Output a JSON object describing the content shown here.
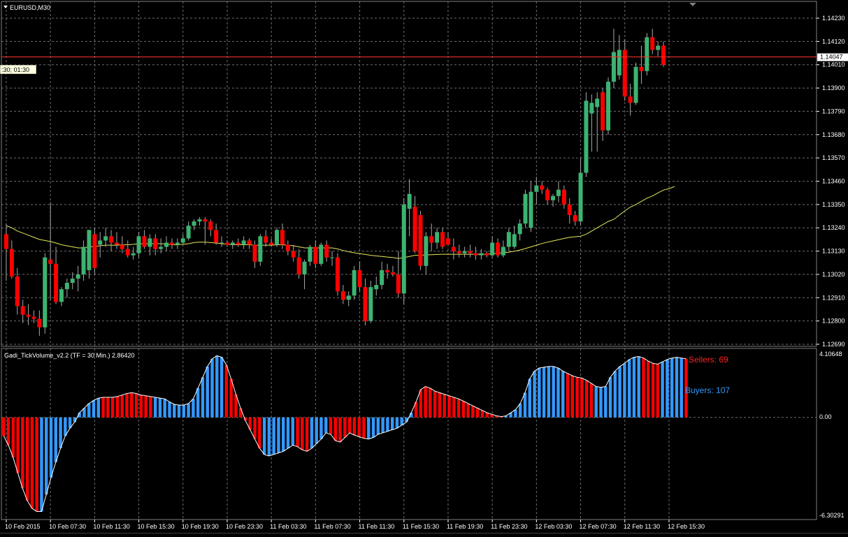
{
  "window": {
    "symbol_label": "EURUSD,M30",
    "cursor_readout": ":30; 01:30"
  },
  "main_pane": {
    "price_axis_labels": [
      "1.14230",
      "1.14120",
      "1.14010",
      "1.13900",
      "1.13790",
      "1.13680",
      "1.13570",
      "1.13460",
      "1.13350",
      "1.13240",
      "1.13130",
      "1.13020",
      "1.12910",
      "1.12800",
      "1.12690"
    ],
    "current_price_label": "1.14047",
    "price_range": [
      1.1269,
      1.1423
    ],
    "current_price": 1.14047
  },
  "indicator_pane": {
    "title": "Gadi_TickVolume_v2.2 (TF = 30 Min.) 2.86420",
    "max_label": "4.10648",
    "zero_label": "0.00",
    "min_label": "-6.30291",
    "value_range": [
      -6.30291,
      4.10648
    ],
    "sellers_label": "Sellers: 69",
    "buyers_label": "Buyers: 107"
  },
  "time_axis_labels": [
    "10 Feb 2015",
    "10 Feb 07:30",
    "10 Feb 11:30",
    "10 Feb 15:30",
    "10 Feb 19:30",
    "10 Feb 23:30",
    "11 Feb 03:30",
    "11 Feb 07:30",
    "11 Feb 11:30",
    "11 Feb 15:30",
    "11 Feb 19:30",
    "11 Feb 23:30",
    "12 Feb 03:30",
    "12 Feb 07:30",
    "12 Feb 11:30",
    "12 Feb 15:30"
  ],
  "colors": {
    "background": "#000000",
    "grid": "#6e6e6e",
    "bull_candle": "#3cb371",
    "bear_candle": "#ff0000",
    "wick": "#a9a9a9",
    "moving_average": "#e8e85a",
    "price_line": "#ff3030",
    "buyers_hist": "#3399ff",
    "sellers_hist": "#ff0000",
    "hist_outline": "#ffffff",
    "text": "#ffffff"
  },
  "chart_data": {
    "type": "candlestick",
    "x_labels_every_bars": 8,
    "candles": [
      {
        "o": 1.1321,
        "h": 1.1326,
        "l": 1.1299,
        "c": 1.1314
      },
      {
        "o": 1.1314,
        "h": 1.1318,
        "l": 1.13,
        "c": 1.1301
      },
      {
        "o": 1.1301,
        "h": 1.1305,
        "l": 1.1283,
        "c": 1.1287
      },
      {
        "o": 1.1287,
        "h": 1.129,
        "l": 1.1279,
        "c": 1.1283
      },
      {
        "o": 1.1283,
        "h": 1.1288,
        "l": 1.1278,
        "c": 1.1282
      },
      {
        "o": 1.1282,
        "h": 1.1285,
        "l": 1.1279,
        "c": 1.1281
      },
      {
        "o": 1.1281,
        "h": 1.1285,
        "l": 1.1273,
        "c": 1.1277
      },
      {
        "o": 1.1277,
        "h": 1.1312,
        "l": 1.1274,
        "c": 1.131
      },
      {
        "o": 1.1309,
        "h": 1.1336,
        "l": 1.129,
        "c": 1.1307
      },
      {
        "o": 1.1307,
        "h": 1.1315,
        "l": 1.1288,
        "c": 1.1289
      },
      {
        "o": 1.1289,
        "h": 1.1296,
        "l": 1.1287,
        "c": 1.1295
      },
      {
        "o": 1.1295,
        "h": 1.13,
        "l": 1.1291,
        "c": 1.1298
      },
      {
        "o": 1.1298,
        "h": 1.1303,
        "l": 1.1295,
        "c": 1.13
      },
      {
        "o": 1.13,
        "h": 1.1306,
        "l": 1.1294,
        "c": 1.1302
      },
      {
        "o": 1.1302,
        "h": 1.1318,
        "l": 1.1299,
        "c": 1.1315
      },
      {
        "o": 1.1304,
        "h": 1.1322,
        "l": 1.13,
        "c": 1.1323
      },
      {
        "o": 1.1321,
        "h": 1.1324,
        "l": 1.1302,
        "c": 1.1305
      },
      {
        "o": 1.1316,
        "h": 1.1322,
        "l": 1.131,
        "c": 1.1318
      },
      {
        "o": 1.1318,
        "h": 1.1324,
        "l": 1.1315,
        "c": 1.132
      },
      {
        "o": 1.132,
        "h": 1.1323,
        "l": 1.1313,
        "c": 1.1317
      },
      {
        "o": 1.1317,
        "h": 1.1322,
        "l": 1.1314,
        "c": 1.1316
      },
      {
        "o": 1.1316,
        "h": 1.132,
        "l": 1.1312,
        "c": 1.1314
      },
      {
        "o": 1.1314,
        "h": 1.1318,
        "l": 1.131,
        "c": 1.1311
      },
      {
        "o": 1.1311,
        "h": 1.1315,
        "l": 1.1309,
        "c": 1.1312
      },
      {
        "o": 1.1312,
        "h": 1.1322,
        "l": 1.131,
        "c": 1.132
      },
      {
        "o": 1.132,
        "h": 1.1323,
        "l": 1.1314,
        "c": 1.1315
      },
      {
        "o": 1.1315,
        "h": 1.1321,
        "l": 1.1311,
        "c": 1.1319
      },
      {
        "o": 1.1319,
        "h": 1.1321,
        "l": 1.1311,
        "c": 1.1314
      },
      {
        "o": 1.1314,
        "h": 1.1319,
        "l": 1.1312,
        "c": 1.1315
      },
      {
        "o": 1.1315,
        "h": 1.132,
        "l": 1.1313,
        "c": 1.1317
      },
      {
        "o": 1.1317,
        "h": 1.1319,
        "l": 1.1314,
        "c": 1.1316
      },
      {
        "o": 1.1316,
        "h": 1.1319,
        "l": 1.1314,
        "c": 1.1317
      },
      {
        "o": 1.1317,
        "h": 1.1321,
        "l": 1.1316,
        "c": 1.1319
      },
      {
        "o": 1.1319,
        "h": 1.1327,
        "l": 1.1318,
        "c": 1.1325
      },
      {
        "o": 1.1325,
        "h": 1.1328,
        "l": 1.1323,
        "c": 1.1327
      },
      {
        "o": 1.1327,
        "h": 1.1329,
        "l": 1.1325,
        "c": 1.1328
      },
      {
        "o": 1.1328,
        "h": 1.1329,
        "l": 1.1316,
        "c": 1.1327
      },
      {
        "o": 1.1327,
        "h": 1.1328,
        "l": 1.132,
        "c": 1.1323
      },
      {
        "o": 1.1323,
        "h": 1.1326,
        "l": 1.1316,
        "c": 1.1317
      },
      {
        "o": 1.1317,
        "h": 1.132,
        "l": 1.1315,
        "c": 1.1317
      },
      {
        "o": 1.1317,
        "h": 1.1318,
        "l": 1.1315,
        "c": 1.1316
      },
      {
        "o": 1.1316,
        "h": 1.1318,
        "l": 1.1314,
        "c": 1.1317
      },
      {
        "o": 1.1317,
        "h": 1.1319,
        "l": 1.1315,
        "c": 1.1316
      },
      {
        "o": 1.1316,
        "h": 1.132,
        "l": 1.1314,
        "c": 1.1318
      },
      {
        "o": 1.1318,
        "h": 1.1319,
        "l": 1.1314,
        "c": 1.1316
      },
      {
        "o": 1.1316,
        "h": 1.1318,
        "l": 1.1305,
        "c": 1.1308
      },
      {
        "o": 1.1308,
        "h": 1.1321,
        "l": 1.1306,
        "c": 1.132
      },
      {
        "o": 1.132,
        "h": 1.1323,
        "l": 1.1315,
        "c": 1.1317
      },
      {
        "o": 1.1317,
        "h": 1.1319,
        "l": 1.1315,
        "c": 1.1316
      },
      {
        "o": 1.1316,
        "h": 1.1324,
        "l": 1.1315,
        "c": 1.1323
      },
      {
        "o": 1.1323,
        "h": 1.1326,
        "l": 1.1314,
        "c": 1.1316
      },
      {
        "o": 1.1316,
        "h": 1.1318,
        "l": 1.1311,
        "c": 1.1313
      },
      {
        "o": 1.1313,
        "h": 1.1316,
        "l": 1.1308,
        "c": 1.131
      },
      {
        "o": 1.131,
        "h": 1.1314,
        "l": 1.13,
        "c": 1.1302
      },
      {
        "o": 1.1302,
        "h": 1.1309,
        "l": 1.1295,
        "c": 1.1308
      },
      {
        "o": 1.1308,
        "h": 1.1316,
        "l": 1.1306,
        "c": 1.1315
      },
      {
        "o": 1.1315,
        "h": 1.1318,
        "l": 1.1305,
        "c": 1.1307
      },
      {
        "o": 1.1307,
        "h": 1.1317,
        "l": 1.1306,
        "c": 1.1316
      },
      {
        "o": 1.1316,
        "h": 1.1318,
        "l": 1.1308,
        "c": 1.131
      },
      {
        "o": 1.131,
        "h": 1.1313,
        "l": 1.1306,
        "c": 1.131
      },
      {
        "o": 1.131,
        "h": 1.1312,
        "l": 1.1292,
        "c": 1.1294
      },
      {
        "o": 1.1294,
        "h": 1.1297,
        "l": 1.1288,
        "c": 1.129
      },
      {
        "o": 1.129,
        "h": 1.1294,
        "l": 1.1287,
        "c": 1.1292
      },
      {
        "o": 1.1292,
        "h": 1.1306,
        "l": 1.129,
        "c": 1.1304
      },
      {
        "o": 1.1304,
        "h": 1.1308,
        "l": 1.1294,
        "c": 1.1296
      },
      {
        "o": 1.1296,
        "h": 1.13,
        "l": 1.1278,
        "c": 1.128
      },
      {
        "o": 1.128,
        "h": 1.1299,
        "l": 1.1279,
        "c": 1.1296
      },
      {
        "o": 1.1295,
        "h": 1.1301,
        "l": 1.1292,
        "c": 1.1297
      },
      {
        "o": 1.1297,
        "h": 1.1308,
        "l": 1.1295,
        "c": 1.1304
      },
      {
        "o": 1.1304,
        "h": 1.1307,
        "l": 1.13,
        "c": 1.1303
      },
      {
        "o": 1.1303,
        "h": 1.1306,
        "l": 1.1301,
        "c": 1.1302
      },
      {
        "o": 1.1302,
        "h": 1.1313,
        "l": 1.1291,
        "c": 1.1293
      },
      {
        "o": 1.1293,
        "h": 1.1338,
        "l": 1.1288,
        "c": 1.1335
      },
      {
        "o": 1.1333,
        "h": 1.1347,
        "l": 1.132,
        "c": 1.134
      },
      {
        "o": 1.1334,
        "h": 1.1339,
        "l": 1.1312,
        "c": 1.1313
      },
      {
        "o": 1.133,
        "h": 1.1332,
        "l": 1.1304,
        "c": 1.1306
      },
      {
        "o": 1.1306,
        "h": 1.1322,
        "l": 1.1302,
        "c": 1.132
      },
      {
        "o": 1.132,
        "h": 1.1326,
        "l": 1.1313,
        "c": 1.1317
      },
      {
        "o": 1.1317,
        "h": 1.1324,
        "l": 1.1314,
        "c": 1.1322
      },
      {
        "o": 1.1322,
        "h": 1.1324,
        "l": 1.1314,
        "c": 1.1315
      },
      {
        "o": 1.1319,
        "h": 1.1322,
        "l": 1.1316,
        "c": 1.1316
      },
      {
        "o": 1.1315,
        "h": 1.1319,
        "l": 1.1309,
        "c": 1.1313
      },
      {
        "o": 1.1313,
        "h": 1.1316,
        "l": 1.131,
        "c": 1.1312
      },
      {
        "o": 1.1312,
        "h": 1.1315,
        "l": 1.131,
        "c": 1.1313
      },
      {
        "o": 1.1313,
        "h": 1.1316,
        "l": 1.131,
        "c": 1.1312
      },
      {
        "o": 1.1312,
        "h": 1.1315,
        "l": 1.1309,
        "c": 1.1311
      },
      {
        "o": 1.1311,
        "h": 1.1314,
        "l": 1.1309,
        "c": 1.1312
      },
      {
        "o": 1.1312,
        "h": 1.1313,
        "l": 1.131,
        "c": 1.1311
      },
      {
        "o": 1.1311,
        "h": 1.132,
        "l": 1.131,
        "c": 1.1317
      },
      {
        "o": 1.1317,
        "h": 1.1319,
        "l": 1.131,
        "c": 1.1311
      },
      {
        "o": 1.1311,
        "h": 1.1318,
        "l": 1.131,
        "c": 1.1315
      },
      {
        "o": 1.1315,
        "h": 1.1324,
        "l": 1.1313,
        "c": 1.1322
      },
      {
        "o": 1.1315,
        "h": 1.1325,
        "l": 1.1314,
        "c": 1.1321
      },
      {
        "o": 1.1321,
        "h": 1.1328,
        "l": 1.1318,
        "c": 1.1326
      },
      {
        "o": 1.1326,
        "h": 1.1342,
        "l": 1.1324,
        "c": 1.134
      },
      {
        "o": 1.1324,
        "h": 1.1346,
        "l": 1.1322,
        "c": 1.1341
      },
      {
        "o": 1.1341,
        "h": 1.1348,
        "l": 1.1335,
        "c": 1.1344
      },
      {
        "o": 1.1344,
        "h": 1.1346,
        "l": 1.134,
        "c": 1.1342
      },
      {
        "o": 1.1342,
        "h": 1.1343,
        "l": 1.1335,
        "c": 1.1337
      },
      {
        "o": 1.1337,
        "h": 1.134,
        "l": 1.1334,
        "c": 1.1339
      },
      {
        "o": 1.1339,
        "h": 1.1346,
        "l": 1.1336,
        "c": 1.1342
      },
      {
        "o": 1.1342,
        "h": 1.1344,
        "l": 1.1333,
        "c": 1.1335
      },
      {
        "o": 1.1335,
        "h": 1.1338,
        "l": 1.1326,
        "c": 1.133
      },
      {
        "o": 1.133,
        "h": 1.1332,
        "l": 1.1325,
        "c": 1.1327
      },
      {
        "o": 1.1327,
        "h": 1.1357,
        "l": 1.1325,
        "c": 1.135
      },
      {
        "o": 1.135,
        "h": 1.1388,
        "l": 1.1348,
        "c": 1.1384
      },
      {
        "o": 1.1378,
        "h": 1.1387,
        "l": 1.136,
        "c": 1.1383
      },
      {
        "o": 1.1381,
        "h": 1.1388,
        "l": 1.136,
        "c": 1.1385
      },
      {
        "o": 1.1388,
        "h": 1.139,
        "l": 1.1365,
        "c": 1.137
      },
      {
        "o": 1.137,
        "h": 1.1395,
        "l": 1.1368,
        "c": 1.1393
      },
      {
        "o": 1.1393,
        "h": 1.1418,
        "l": 1.139,
        "c": 1.1407
      },
      {
        "o": 1.1396,
        "h": 1.1415,
        "l": 1.1394,
        "c": 1.1408
      },
      {
        "o": 1.1408,
        "h": 1.1413,
        "l": 1.1384,
        "c": 1.1386
      },
      {
        "o": 1.1386,
        "h": 1.1392,
        "l": 1.1377,
        "c": 1.1383
      },
      {
        "o": 1.1383,
        "h": 1.1402,
        "l": 1.1382,
        "c": 1.14
      },
      {
        "o": 1.14,
        "h": 1.141,
        "l": 1.1392,
        "c": 1.1398
      },
      {
        "o": 1.1398,
        "h": 1.1416,
        "l": 1.1396,
        "c": 1.1414
      },
      {
        "o": 1.1414,
        "h": 1.1418,
        "l": 1.1406,
        "c": 1.1408
      },
      {
        "o": 1.1408,
        "h": 1.1412,
        "l": 1.1405,
        "c": 1.141
      },
      {
        "o": 1.141,
        "h": 1.1412,
        "l": 1.14,
        "c": 1.1401
      }
    ],
    "ma_values": [
      1.1325,
      1.1324,
      1.13225,
      1.13215,
      1.13205,
      1.13195,
      1.13185,
      1.1318,
      1.13175,
      1.13168,
      1.1316,
      1.13155,
      1.1315,
      1.13145,
      1.13145,
      1.1315,
      1.13152,
      1.13155,
      1.13158,
      1.13158,
      1.13158,
      1.1316,
      1.1316,
      1.13162,
      1.13165,
      1.13165,
      1.13165,
      1.13165,
      1.13165,
      1.13163,
      1.1316,
      1.1316,
      1.13162,
      1.13165,
      1.1317,
      1.13172,
      1.13172,
      1.1317,
      1.13168,
      1.13165,
      1.13162,
      1.1316,
      1.1316,
      1.1316,
      1.1316,
      1.13158,
      1.13158,
      1.13158,
      1.13158,
      1.1316,
      1.1316,
      1.13158,
      1.13155,
      1.1315,
      1.13145,
      1.13145,
      1.13145,
      1.13145,
      1.13145,
      1.13145,
      1.1314,
      1.13133,
      1.13127,
      1.13122,
      1.13118,
      1.13114,
      1.1311,
      1.13107,
      1.13105,
      1.13102,
      1.131,
      1.13095,
      1.131,
      1.13105,
      1.1311,
      1.1311,
      1.13112,
      1.13113,
      1.13114,
      1.13115,
      1.13115,
      1.13115,
      1.13115,
      1.13115,
      1.13115,
      1.13115,
      1.13115,
      1.13115,
      1.13118,
      1.1312,
      1.13122,
      1.13125,
      1.1313,
      1.13135,
      1.13142,
      1.1315,
      1.13158,
      1.13166,
      1.13172,
      1.13178,
      1.13184,
      1.1319,
      1.13195,
      1.13198,
      1.132,
      1.1321,
      1.13225,
      1.1324,
      1.13255,
      1.1327,
      1.1328,
      1.133,
      1.1332,
      1.13338,
      1.1335,
      1.13365,
      1.1338,
      1.1339,
      1.13405,
      1.13418,
      1.13425,
      1.13435
    ],
    "histogram": [
      -1.2,
      -1.8,
      -2.6,
      -3.6,
      -4.6,
      -5.4,
      -5.9,
      -6.1,
      -6.1,
      -5.0,
      -3.9,
      -2.9,
      -2.0,
      -1.2,
      -0.7,
      -0.3,
      0.3,
      0.6,
      0.9,
      1.1,
      1.25,
      1.3,
      1.3,
      1.3,
      1.35,
      1.45,
      1.55,
      1.6,
      1.55,
      1.45,
      1.4,
      1.35,
      1.3,
      1.25,
      1.2,
      1.0,
      0.85,
      0.8,
      0.8,
      0.9,
      1.2,
      1.9,
      2.6,
      3.3,
      3.8,
      4.0,
      3.9,
      3.4,
      2.5,
      1.5,
      0.6,
      -0.2,
      -0.8,
      -1.4,
      -2.0,
      -2.4,
      -2.5,
      -2.4,
      -2.3,
      -2.2,
      -2.0,
      -1.8,
      -1.9,
      -2.1,
      -2.2,
      -2.0,
      -1.7,
      -1.4,
      -1.0,
      -1.1,
      -1.5,
      -1.6,
      -1.3,
      -1.0,
      -1.15,
      -1.25,
      -1.35,
      -1.4,
      -1.3,
      -1.1,
      -1.0,
      -0.9,
      -0.8,
      -0.7,
      -0.5,
      -0.3,
      0.3,
      1.0,
      1.8,
      2.0,
      1.9,
      1.7,
      1.6,
      1.5,
      1.4,
      1.3,
      1.2,
      1.05,
      0.9,
      0.75,
      0.6,
      0.45,
      0.3,
      0.2,
      0.1,
      0.05,
      0.1,
      0.3,
      0.5,
      0.9,
      1.6,
      2.5,
      3.0,
      3.2,
      3.25,
      3.3,
      3.3,
      3.2,
      3.0,
      2.85,
      2.7,
      2.6,
      2.55,
      2.4,
      2.2,
      2.0,
      1.95,
      2.0,
      2.6,
      3.0,
      3.3,
      3.5,
      3.75,
      3.9,
      3.95,
      3.85,
      3.65,
      3.5,
      3.45,
      3.6,
      3.75,
      3.85,
      3.9,
      3.85,
      3.8
    ],
    "histogram_colors": [
      "r",
      "r",
      "r",
      "r",
      "r",
      "r",
      "r",
      "r",
      "b",
      "b",
      "b",
      "b",
      "b",
      "b",
      "b",
      "b",
      "b",
      "b",
      "b",
      "b",
      "b",
      "r",
      "r",
      "r",
      "r",
      "r",
      "r",
      "r",
      "r",
      "r",
      "r",
      "r",
      "b",
      "b",
      "b",
      "b",
      "b",
      "b",
      "b",
      "b",
      "b",
      "b",
      "b",
      "b",
      "b",
      "b",
      "b",
      "r",
      "r",
      "r",
      "r",
      "r",
      "r",
      "r",
      "r",
      "b",
      "b",
      "b",
      "b",
      "b",
      "b",
      "b",
      "r",
      "r",
      "r",
      "b",
      "b",
      "b",
      "b",
      "r",
      "r",
      "r",
      "r",
      "r",
      "r",
      "r",
      "r",
      "b",
      "b",
      "b",
      "b",
      "b",
      "b",
      "b",
      "b",
      "b",
      "b",
      "r",
      "r",
      "r",
      "r",
      "r",
      "r",
      "r",
      "r",
      "r",
      "r",
      "r",
      "r",
      "r",
      "r",
      "r",
      "r",
      "r",
      "r",
      "r",
      "b",
      "b",
      "b",
      "b",
      "b",
      "b",
      "b",
      "b",
      "b",
      "b",
      "b",
      "b",
      "b",
      "r",
      "r",
      "r",
      "r",
      "r",
      "r",
      "b",
      "b",
      "b",
      "b",
      "b",
      "b",
      "b",
      "b",
      "b",
      "b",
      "r",
      "r",
      "r",
      "r",
      "b",
      "b",
      "b",
      "b",
      "b",
      "r"
    ]
  }
}
